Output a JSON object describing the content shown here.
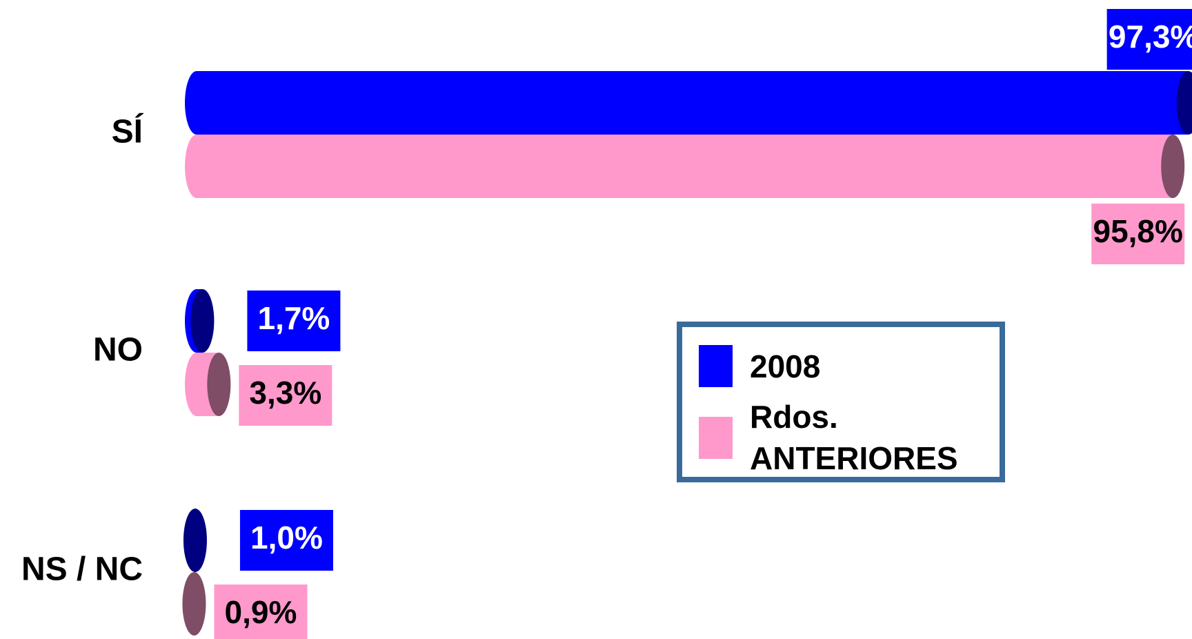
{
  "chart_data": {
    "type": "bar",
    "orientation": "horizontal",
    "categories": [
      "SÍ",
      "NO",
      "NS / NC"
    ],
    "series": [
      {
        "name": "2008",
        "color": "#0000ff",
        "values": [
          97.3,
          1.7,
          1.0
        ],
        "value_labels": [
          "97,3%",
          "1,7%",
          "1,0%"
        ]
      },
      {
        "name": "Rdos. ANTERIORES",
        "color": "#ff99cc",
        "values": [
          95.8,
          3.3,
          0.9
        ],
        "value_labels": [
          "95,8%",
          "3,3%",
          "0,9%"
        ]
      }
    ],
    "xlim": [
      0,
      100
    ]
  }
}
